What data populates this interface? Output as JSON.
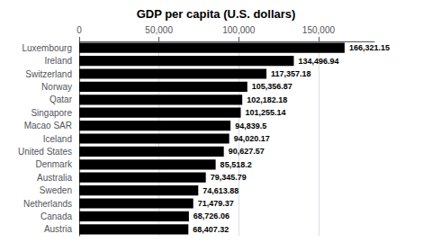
{
  "chart_data": {
    "type": "bar",
    "orientation": "horizontal",
    "title": "GDP per capita (U.S. dollars)",
    "categories": [
      "Luxembourg",
      "Ireland",
      "Switzerland",
      "Norway",
      "Qatar",
      "Singapore",
      "Macao SAR",
      "Iceland",
      "United States",
      "Denmark",
      "Australia",
      "Sweden",
      "Netherlands",
      "Canada",
      "Austria"
    ],
    "values": [
      166321.15,
      134496.94,
      117357.18,
      105356.87,
      102182.18,
      101255.14,
      94839.5,
      94020.17,
      90627.57,
      85518.2,
      79345.79,
      74613.88,
      71479.37,
      68726.06,
      68407.32
    ],
    "value_labels": [
      "166,321.15",
      "134,496.94",
      "117,357.18",
      "105,356.87",
      "102,182.18",
      "101,255.14",
      "94,839.5",
      "94,020.17",
      "90,627.57",
      "85,518.2",
      "79,345.79",
      "74,613.88",
      "71,479.37",
      "68,726.06",
      "68,407.32"
    ],
    "data_labels": true,
    "color": "#000000",
    "xlim": [
      0,
      185000
    ],
    "xticks": [
      0,
      {
        "value": 50000,
        "label": "50,000"
      },
      {
        "value": 100000,
        "label": "100,000"
      },
      {
        "value": 150000,
        "label": "150,000"
      }
    ],
    "grid": true
  }
}
